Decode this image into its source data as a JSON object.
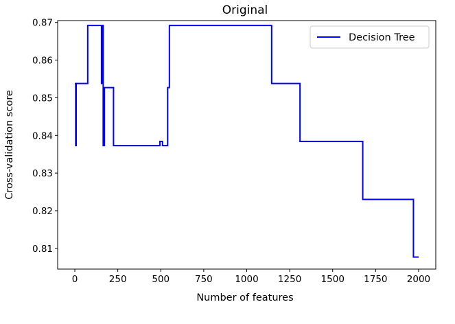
{
  "chart_data": {
    "type": "line",
    "title": "Original",
    "xlabel": "Number of features",
    "ylabel": "Cross-validation score",
    "xlim": [
      -100,
      2100
    ],
    "ylim": [
      0.8045,
      0.8705
    ],
    "xticks": [
      0,
      250,
      500,
      750,
      1000,
      1250,
      1500,
      1750,
      2000
    ],
    "yticks": [
      0.81,
      0.82,
      0.83,
      0.84,
      0.85,
      0.86,
      0.87
    ],
    "xtick_labels": [
      "0",
      "250",
      "500",
      "750",
      "1000",
      "1250",
      "1500",
      "1750",
      "2000"
    ],
    "ytick_labels": [
      "0.81",
      "0.82",
      "0.83",
      "0.84",
      "0.85",
      "0.86",
      "0.87"
    ],
    "grid": false,
    "legend_position": "top-right",
    "series": [
      {
        "name": "Decision Tree",
        "color": "#0000ff",
        "step": true,
        "x": [
          0,
          5,
          8,
          12,
          75,
          155,
          160,
          165,
          172,
          225,
          495,
          510,
          540,
          550,
          1145,
          1310,
          1675,
          1970,
          2000
        ],
        "y": [
          0.8538,
          0.8373,
          0.8538,
          0.8538,
          0.8692,
          0.8538,
          0.8692,
          0.8373,
          0.8527,
          0.8373,
          0.8384,
          0.8373,
          0.8527,
          0.8692,
          0.8538,
          0.8384,
          0.823,
          0.8077,
          0.8077
        ]
      }
    ]
  }
}
